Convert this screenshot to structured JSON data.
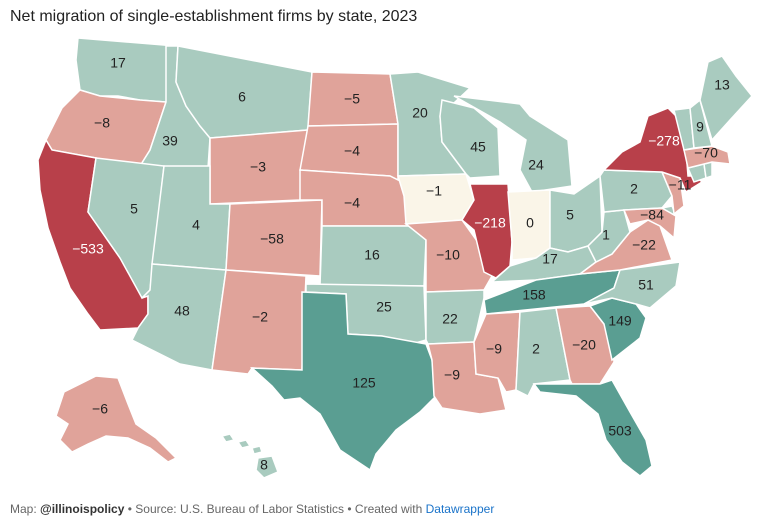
{
  "title": "Net migration of single-establishment firms by state, 2023",
  "footer": {
    "map_prefix": "Map: ",
    "map_credit": "@illinoispolicy",
    "source": " • Source: U.S. Bureau of Labor Statistics • Created with ",
    "tool": "Datawrapper"
  },
  "colors": {
    "strong_negative": "#b8404a",
    "negative": "#e0a39a",
    "neutral": "#faf5e8",
    "positive": "#a9cbbf",
    "strong_positive": "#5a9e92"
  },
  "states": [
    {
      "id": "WA",
      "value": "17"
    },
    {
      "id": "OR",
      "value": "−8"
    },
    {
      "id": "CA",
      "value": "−533"
    },
    {
      "id": "ID",
      "value": "39"
    },
    {
      "id": "NV",
      "value": "5"
    },
    {
      "id": "MT",
      "value": "6"
    },
    {
      "id": "WY",
      "value": "−3"
    },
    {
      "id": "UT",
      "value": "4"
    },
    {
      "id": "AZ",
      "value": "48"
    },
    {
      "id": "CO",
      "value": "−58"
    },
    {
      "id": "NM",
      "value": "−2"
    },
    {
      "id": "ND",
      "value": "−5"
    },
    {
      "id": "SD",
      "value": "−4"
    },
    {
      "id": "NE",
      "value": "−4"
    },
    {
      "id": "KS",
      "value": "16"
    },
    {
      "id": "OK",
      "value": "25"
    },
    {
      "id": "TX",
      "value": "125"
    },
    {
      "id": "MN",
      "value": "20"
    },
    {
      "id": "IA",
      "value": "−1"
    },
    {
      "id": "MO",
      "value": "−10"
    },
    {
      "id": "AR",
      "value": "22"
    },
    {
      "id": "LA",
      "value": "−9"
    },
    {
      "id": "WI",
      "value": "45"
    },
    {
      "id": "IL",
      "value": "−218"
    },
    {
      "id": "MI",
      "value": "24"
    },
    {
      "id": "IN",
      "value": "0"
    },
    {
      "id": "OH",
      "value": "5"
    },
    {
      "id": "KY",
      "value": "17"
    },
    {
      "id": "TN",
      "value": "158"
    },
    {
      "id": "MS",
      "value": "−9"
    },
    {
      "id": "AL",
      "value": "2"
    },
    {
      "id": "GA",
      "value": "−20"
    },
    {
      "id": "FL",
      "value": "503"
    },
    {
      "id": "SC",
      "value": "149"
    },
    {
      "id": "NC",
      "value": "51"
    },
    {
      "id": "VA",
      "value": "−22"
    },
    {
      "id": "WV",
      "value": "1"
    },
    {
      "id": "MD",
      "value": "−84"
    },
    {
      "id": "PA",
      "value": "2"
    },
    {
      "id": "NJ",
      "value": "−11"
    },
    {
      "id": "NY",
      "value": "−278"
    },
    {
      "id": "MA",
      "value": "−70"
    },
    {
      "id": "VT",
      "value": "9"
    },
    {
      "id": "ME",
      "value": "13"
    },
    {
      "id": "AK",
      "value": "−6"
    },
    {
      "id": "HI",
      "value": "8"
    },
    {
      "id": "NH",
      "value": ""
    },
    {
      "id": "CT",
      "value": ""
    },
    {
      "id": "RI",
      "value": ""
    },
    {
      "id": "DE",
      "value": ""
    }
  ]
}
